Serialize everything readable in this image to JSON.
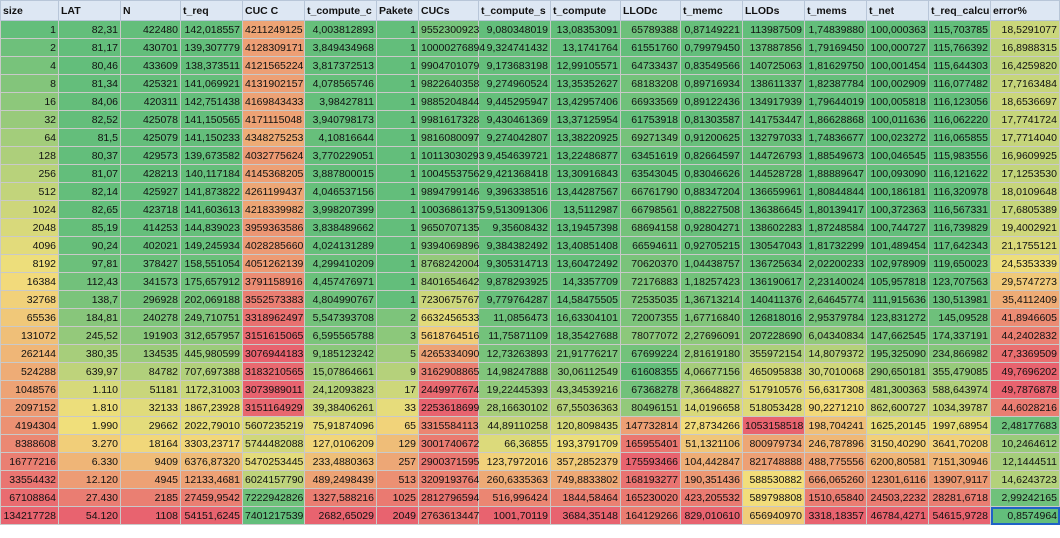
{
  "colors": {
    "header": "#dde7f3",
    "green": "#63be7b",
    "yellow": "#f2df7b",
    "red": "#e8636f",
    "selection": "#1f62c7"
  },
  "columns": [
    "size",
    "LAT",
    "N",
    "t_req",
    "CUC C",
    "t_compute_c",
    "Pakete",
    "CUCs",
    "t_compute_s",
    "t_compute",
    "LLODc",
    "t_memc",
    "LLODs",
    "t_mems",
    "t_net",
    "t_req_calcu",
    "error%"
  ],
  "rows": [
    [
      "1",
      "82,31",
      "422480",
      "142,018557",
      "4211249125",
      "4,003812893",
      "1",
      "9552300923",
      "9,080348019",
      "13,08353091",
      "65789388",
      "0,87149221",
      "113987509",
      "1,74839880",
      "100,000363",
      "115,703785",
      "18,5291077"
    ],
    [
      "2",
      "81,17",
      "430701",
      "139,307779",
      "4128309171",
      "3,849434968",
      "1",
      "10000276894",
      "9,324741432",
      "13,1741764",
      "61551760",
      "0,79979450",
      "137887856",
      "1,79169450",
      "100,000727",
      "115,766392",
      "16,8988315"
    ],
    [
      "4",
      "80,46",
      "433609",
      "138,373511",
      "4121565224",
      "3,817372513",
      "1",
      "9904701079",
      "9,173683198",
      "12,99105571",
      "64733437",
      "0,83549566",
      "140725063",
      "1,81629750",
      "100,001454",
      "115,644303",
      "16,4259820"
    ],
    [
      "8",
      "81,34",
      "425321",
      "141,069921",
      "4131902157",
      "4,078565746",
      "1",
      "9822640358",
      "9,274960524",
      "13,35352627",
      "68183208",
      "0,89716934",
      "138611337",
      "1,82387784",
      "100,002909",
      "116,077482",
      "17,7163484"
    ],
    [
      "16",
      "84,06",
      "420311",
      "142,751438",
      "4169843433",
      "3,98427811",
      "1",
      "9885204844",
      "9,445295947",
      "13,42957406",
      "66933569",
      "0,89122436",
      "134917939",
      "1,79644019",
      "100,005818",
      "116,123056",
      "18,6536697"
    ],
    [
      "32",
      "82,52",
      "425078",
      "141,150565",
      "4171115048",
      "3,940798173",
      "1",
      "9981617328",
      "9,430461369",
      "13,37125954",
      "61753918",
      "0,81303587",
      "141753447",
      "1,86628868",
      "100,011636",
      "116,062220",
      "17,7741724"
    ],
    [
      "64",
      "81,5",
      "425079",
      "141,150233",
      "4348275253",
      "4,10816644",
      "1",
      "9816080097",
      "9,274042807",
      "13,38220925",
      "69271349",
      "0,91200625",
      "132797033",
      "1,74836677",
      "100,023272",
      "116,065855",
      "17,7714040"
    ],
    [
      "128",
      "80,37",
      "429573",
      "139,673582",
      "4032775624",
      "3,770229051",
      "1",
      "10113030293",
      "9,454639721",
      "13,22486877",
      "63451619",
      "0,82664597",
      "144726793",
      "1,88549673",
      "100,046545",
      "115,983556",
      "16,9609925"
    ],
    [
      "256",
      "81,07",
      "428213",
      "140,117184",
      "4145368205",
      "3,887800015",
      "1",
      "10045537562",
      "9,421368418",
      "13,30916843",
      "63543045",
      "0,83046626",
      "144528728",
      "1,88889647",
      "100,093090",
      "116,121622",
      "17,1253530"
    ],
    [
      "512",
      "82,14",
      "425927",
      "141,873822",
      "4261199437",
      "4,046537156",
      "1",
      "9894799146",
      "9,396338516",
      "13,44287567",
      "66761790",
      "0,88347204",
      "136659961",
      "1,80844844",
      "100,186181",
      "116,320978",
      "18,0109648"
    ],
    [
      "1024",
      "82,65",
      "423718",
      "141,603613",
      "4218339982",
      "3,998207399",
      "1",
      "10036861375",
      "9,513091306",
      "13,5112987",
      "66798561",
      "0,88227508",
      "136386645",
      "1,80139417",
      "100,372363",
      "116,567331",
      "17,6805389"
    ],
    [
      "2048",
      "85,19",
      "414253",
      "144,839023",
      "3959363586",
      "3,838489662",
      "1",
      "9650707135",
      "9,35608432",
      "13,19457398",
      "68694158",
      "0,92804271",
      "138602283",
      "1,87248584",
      "100,744727",
      "116,739829",
      "19,4002921"
    ],
    [
      "4096",
      "90,24",
      "402021",
      "149,245934",
      "4028285660",
      "4,024131289",
      "1",
      "9394069896",
      "9,384382492",
      "13,40851408",
      "66594611",
      "0,92705215",
      "130547043",
      "1,81732299",
      "101,489454",
      "117,642343",
      "21,1755121"
    ],
    [
      "8192",
      "97,81",
      "378427",
      "158,551054",
      "4051262139",
      "4,299410209",
      "1",
      "8768242004",
      "9,305314713",
      "13,60472492",
      "70620370",
      "1,04438757",
      "136725634",
      "2,02200233",
      "102,978909",
      "119,650023",
      "24,5353339"
    ],
    [
      "16384",
      "112,43",
      "341573",
      "175,657912",
      "3791158916",
      "4,457476971",
      "1",
      "8401654642",
      "9,878293925",
      "14,3357709",
      "72176883",
      "1,18257423",
      "136190617",
      "2,23140024",
      "105,957818",
      "123,707563",
      "29,5747273"
    ],
    [
      "32768",
      "138,7",
      "296928",
      "202,069188",
      "3552573383",
      "4,804990767",
      "1",
      "7230675767",
      "9,779764287",
      "14,58475505",
      "72535035",
      "1,36713214",
      "140411376",
      "2,64645774",
      "111,915636",
      "130,513981",
      "35,4112409"
    ],
    [
      "65536",
      "184,81",
      "240278",
      "249,710751",
      "3318962497",
      "5,547393708",
      "2",
      "6632456533",
      "11,0856473",
      "16,63304101",
      "72007355",
      "1,67716840",
      "126818016",
      "2,95379784",
      "123,831272",
      "145,09528",
      "41,8946605"
    ],
    [
      "131072",
      "245,52",
      "191903",
      "312,657957",
      "3151615065",
      "6,595565788",
      "3",
      "5618764516",
      "11,75871109",
      "18,35427688",
      "78077072",
      "2,27696091",
      "207228690",
      "6,04340834",
      "147,662545",
      "174,337191",
      "44,2402832"
    ],
    [
      "262144",
      "380,35",
      "134535",
      "445,980599",
      "3076944183",
      "9,185123242",
      "5",
      "4265334090",
      "12,73263893",
      "21,91776217",
      "67699224",
      "2,81619180",
      "355972154",
      "14,8079372",
      "195,325090",
      "234,866982",
      "47,3369509"
    ],
    [
      "524288",
      "639,97",
      "84782",
      "707,697388",
      "3183210565",
      "15,07864661",
      "9",
      "3162908865",
      "14,98247888",
      "30,06112549",
      "61608355",
      "4,06677156",
      "465095838",
      "30,7010068",
      "290,650181",
      "355,479085",
      "49,7696202"
    ],
    [
      "1048576",
      "1.110",
      "51181",
      "1172,31003",
      "3073989011",
      "24,12093823",
      "17",
      "2449977674",
      "19,22445393",
      "43,34539216",
      "67368278",
      "7,36648827",
      "517910576",
      "56,6317308",
      "481,300363",
      "588,643974",
      "49,7876878"
    ],
    [
      "2097152",
      "1.810",
      "32133",
      "1867,23928",
      "3151164929",
      "39,38406261",
      "33",
      "2253618699",
      "28,16630102",
      "67,55036363",
      "80496151",
      "14,0196658",
      "518053428",
      "90,2271210",
      "862,600727",
      "1034,39787",
      "44,6028216"
    ],
    [
      "4194304",
      "1.990",
      "29662",
      "2022,79010",
      "5607235219",
      "75,91874096",
      "65",
      "3315584113",
      "44,89110258",
      "120,8098435",
      "147732814",
      "27,8734266",
      "1053158518",
      "198,704241",
      "1625,20145",
      "1997,68954",
      "2,48177683"
    ],
    [
      "8388608",
      "3.270",
      "18164",
      "3303,23717",
      "5744482088",
      "127,0106209",
      "129",
      "3001740672",
      "66,36855",
      "193,3791709",
      "165955401",
      "51,1321106",
      "800979734",
      "246,787896",
      "3150,40290",
      "3641,70208",
      "10,2464612"
    ],
    [
      "16777216",
      "6.330",
      "9409",
      "6376,87320",
      "5470253445",
      "233,4880363",
      "257",
      "2900371595",
      "123,7972016",
      "357,2852379",
      "175593466",
      "104,442847",
      "821748888",
      "488,775556",
      "6200,80581",
      "7151,30946",
      "12,1444511"
    ],
    [
      "33554432",
      "12.120",
      "4945",
      "12133,4681",
      "6024157790",
      "489,2498439",
      "513",
      "3209193764",
      "260,6335363",
      "749,8833802",
      "168193277",
      "190,351436",
      "588530882",
      "666,065260",
      "12301,6116",
      "13907,9117",
      "14,6243723"
    ],
    [
      "67108864",
      "27.430",
      "2185",
      "27459,9542",
      "7222942826",
      "1327,588216",
      "1025",
      "2812796594",
      "516,996424",
      "1844,58464",
      "165230020",
      "423,205532",
      "589798808",
      "1510,65840",
      "24503,2232",
      "28281,6718",
      "2,99242165"
    ],
    [
      "134217728",
      "54.120",
      "1108",
      "54151,6245",
      "7401217539",
      "2682,65029",
      "2049",
      "2763613447",
      "1001,70119",
      "3684,35148",
      "164129266",
      "829,010610",
      "656940970",
      "3318,18357",
      "46784,4271",
      "54615,9728",
      "0,8574964"
    ]
  ]
}
